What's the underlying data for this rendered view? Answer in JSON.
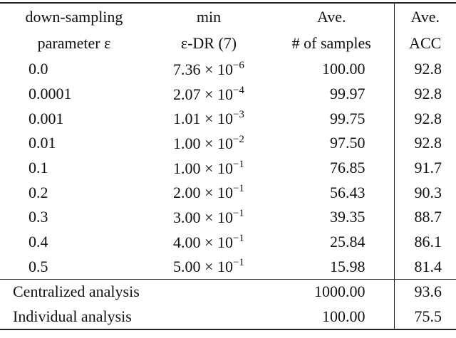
{
  "table": {
    "header": [
      [
        "down-sampling",
        "parameter ε"
      ],
      [
        "min",
        "ε-DR (7)"
      ],
      [
        "Ave.",
        "# of samples"
      ],
      [
        "Ave.",
        "ACC"
      ]
    ],
    "rows": [
      {
        "epsilon": "0.0",
        "dr": {
          "base": "7.36 × 10",
          "exp": "−6"
        },
        "samples": "100.00",
        "acc": "92.8"
      },
      {
        "epsilon": "0.0001",
        "dr": {
          "base": "2.07 × 10",
          "exp": "−4"
        },
        "samples": "99.97",
        "acc": "92.8"
      },
      {
        "epsilon": "0.001",
        "dr": {
          "base": "1.01 × 10",
          "exp": "−3"
        },
        "samples": "99.75",
        "acc": "92.8"
      },
      {
        "epsilon": "0.01",
        "dr": {
          "base": "1.00 × 10",
          "exp": "−2"
        },
        "samples": "97.50",
        "acc": "92.8"
      },
      {
        "epsilon": "0.1",
        "dr": {
          "base": "1.00 × 10",
          "exp": "−1"
        },
        "samples": "76.85",
        "acc": "91.7"
      },
      {
        "epsilon": "0.2",
        "dr": {
          "base": "2.00 × 10",
          "exp": "−1"
        },
        "samples": "56.43",
        "acc": "90.3"
      },
      {
        "epsilon": "0.3",
        "dr": {
          "base": "3.00 × 10",
          "exp": "−1"
        },
        "samples": "39.35",
        "acc": "88.7"
      },
      {
        "epsilon": "0.4",
        "dr": {
          "base": "4.00 × 10",
          "exp": "−1"
        },
        "samples": "25.84",
        "acc": "86.1"
      },
      {
        "epsilon": "0.5",
        "dr": {
          "base": "5.00 × 10",
          "exp": "−1"
        },
        "samples": "15.98",
        "acc": "81.4"
      }
    ],
    "summary": [
      {
        "label": "Centralized analysis",
        "samples": "1000.00",
        "acc": "93.6"
      },
      {
        "label": "Individual analysis",
        "samples": "100.00",
        "acc": "75.5"
      }
    ]
  }
}
